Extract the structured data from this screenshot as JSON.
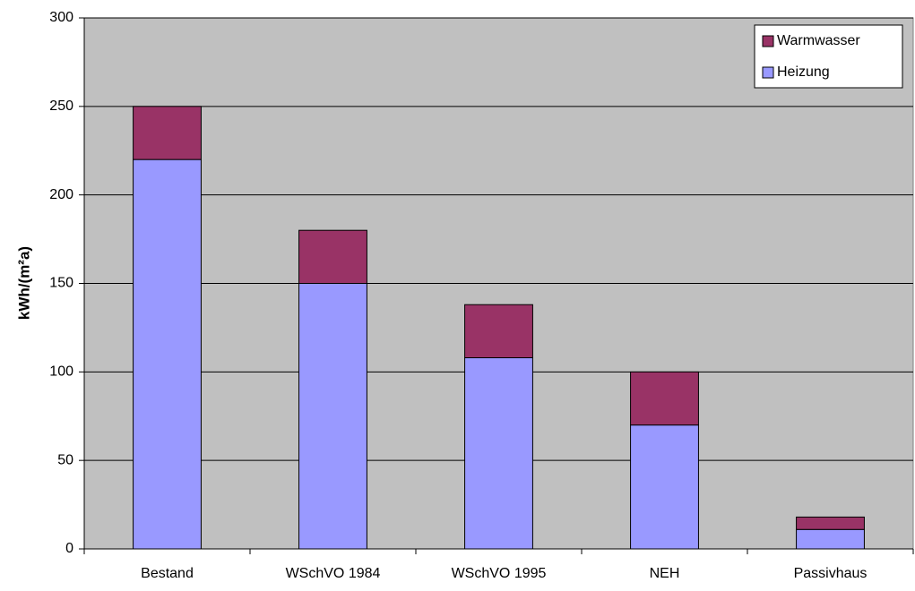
{
  "chart_data": {
    "type": "stacked_bar",
    "y_label": "kWh/(m²a)",
    "categories": [
      "Bestand",
      "WSchVO 1984",
      "WSchVO 1995",
      "NEH",
      "Passivhaus"
    ],
    "series": [
      {
        "name": "Heizung",
        "color": "#9999ff",
        "values": [
          220,
          150,
          108,
          70,
          11
        ]
      },
      {
        "name": "Warmwasser",
        "color": "#993366",
        "values": [
          30,
          30,
          30,
          30,
          7
        ]
      }
    ],
    "ylim": [
      0,
      300
    ],
    "yticks": [
      0,
      50,
      100,
      150,
      200,
      250,
      300
    ],
    "grid": true,
    "legend": "top-right"
  }
}
